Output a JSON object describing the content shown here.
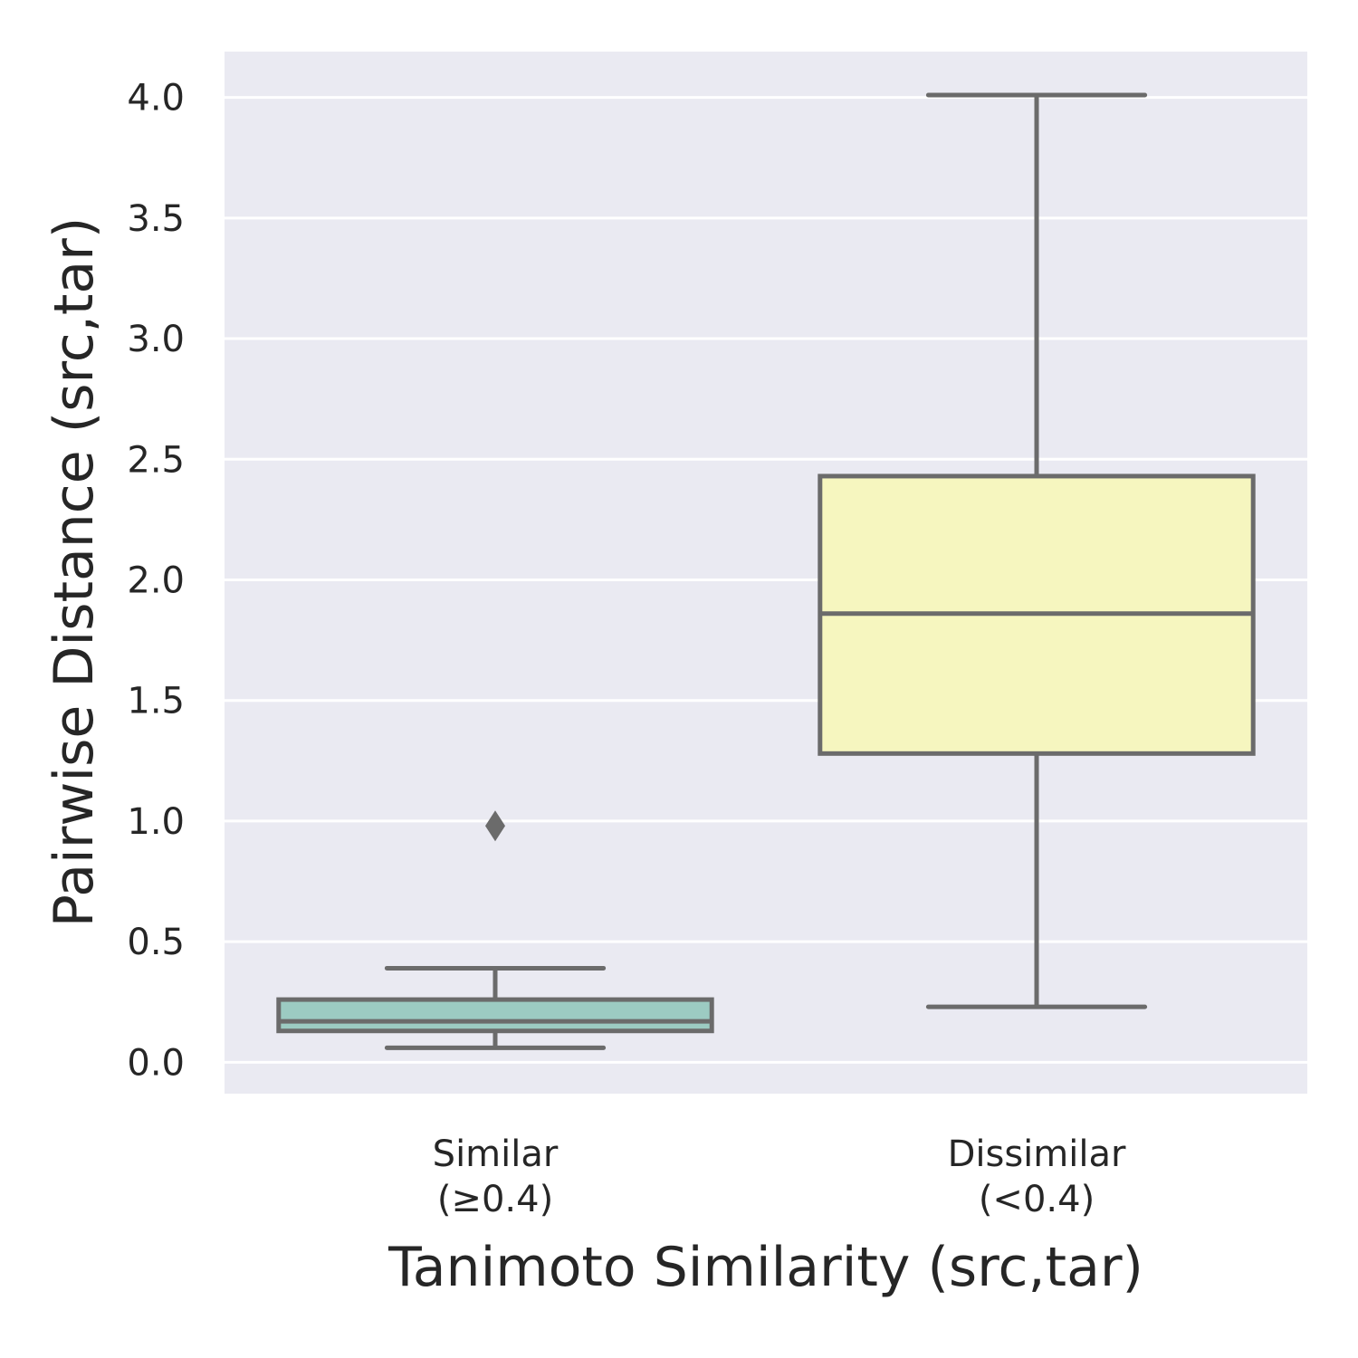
{
  "chart_data": {
    "type": "box",
    "xlabel": "Tanimoto Similarity (src,tar)",
    "ylabel": "Pairwise Distance (src,tar)",
    "ylim": [
      -0.13,
      4.19
    ],
    "yticks": [
      {
        "value": 0.0,
        "label": "0.0"
      },
      {
        "value": 0.5,
        "label": "0.5"
      },
      {
        "value": 1.0,
        "label": "1.0"
      },
      {
        "value": 1.5,
        "label": "1.5"
      },
      {
        "value": 2.0,
        "label": "2.0"
      },
      {
        "value": 2.5,
        "label": "2.5"
      },
      {
        "value": 3.0,
        "label": "3.0"
      },
      {
        "value": 3.5,
        "label": "3.5"
      },
      {
        "value": 4.0,
        "label": "4.0"
      }
    ],
    "grid": true,
    "categories": [
      {
        "label_lines": [
          "Similar",
          "(≥0.4)"
        ],
        "whisker_low": 0.06,
        "q1": 0.13,
        "median": 0.17,
        "q3": 0.26,
        "whisker_high": 0.39,
        "outliers": [
          0.98
        ],
        "color": "#9ccbc2"
      },
      {
        "label_lines": [
          "Dissimilar",
          "(<0.4)"
        ],
        "whisker_low": 0.23,
        "q1": 1.28,
        "median": 1.86,
        "q3": 2.43,
        "whisker_high": 4.01,
        "outliers": [],
        "color": "#f6f6bf"
      }
    ],
    "colors": {
      "plot_background": "#eaeaf2",
      "grid": "#ffffff",
      "box_edge": "#6b6b6b"
    }
  }
}
